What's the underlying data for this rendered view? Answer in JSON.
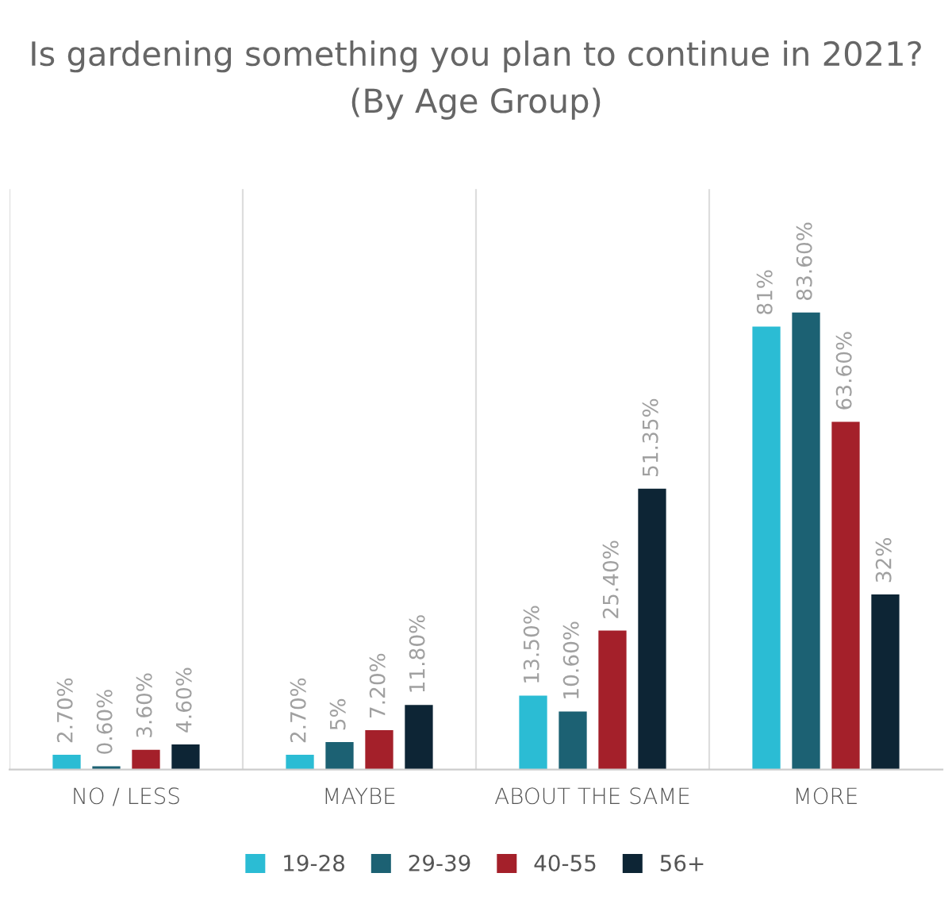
{
  "chart_data": {
    "type": "bar",
    "title": "Is gardening something you plan to continue in 2021?\n(By Age Group)",
    "categories": [
      "NO / LESS",
      "MAYBE",
      "ABOUT THE SAME",
      "MORE"
    ],
    "series": [
      {
        "name": "19-28",
        "color": "#2bbcd4",
        "values": [
          2.7,
          2.7,
          13.5,
          81
        ],
        "value_labels": [
          "2.70%",
          "2.70%",
          "13.50%",
          "81%"
        ]
      },
      {
        "name": "29-39",
        "color": "#1c6173",
        "values": [
          0.6,
          5,
          10.6,
          83.6
        ],
        "value_labels": [
          "0.60%",
          "5%",
          "10.60%",
          "83.60%"
        ]
      },
      {
        "name": "40-55",
        "color": "#a4202a",
        "values": [
          3.6,
          7.2,
          25.4,
          63.6
        ],
        "value_labels": [
          "3.60%",
          "7.20%",
          "25.40%",
          "63.60%"
        ]
      },
      {
        "name": "56+",
        "color": "#0d2535",
        "values": [
          4.6,
          11.8,
          51.35,
          32
        ],
        "value_labels": [
          "4.60%",
          "11.80%",
          "51.35%",
          "32%"
        ]
      }
    ],
    "grid": "x",
    "legend": "bottom",
    "tick_labels": "x"
  }
}
